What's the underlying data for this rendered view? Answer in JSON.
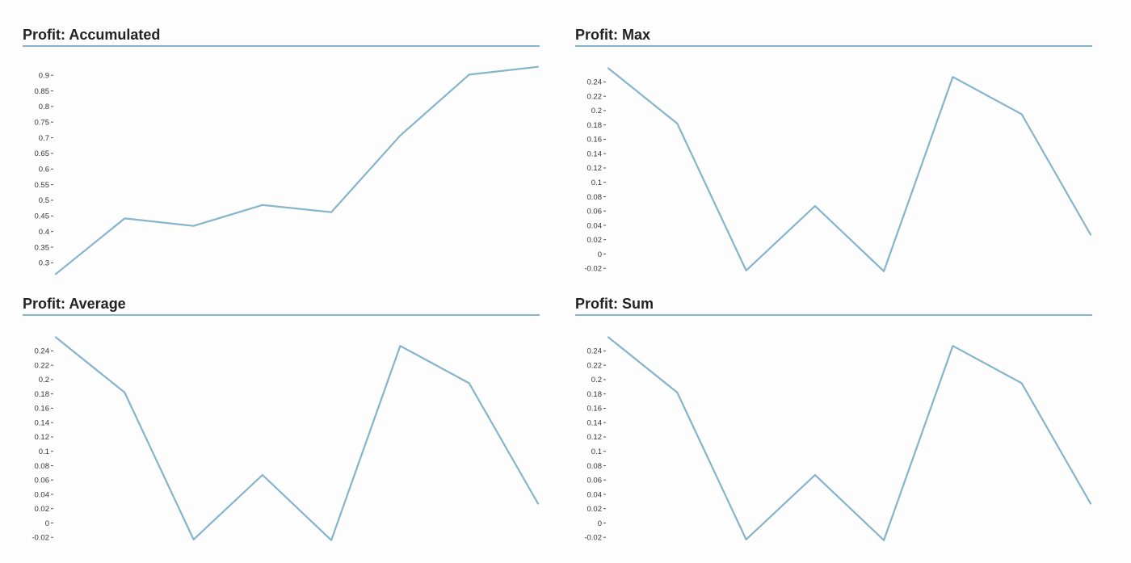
{
  "colors": {
    "line": "#86b4ca",
    "axis_rule": "#86b4ca",
    "text": "#222222"
  },
  "chart_data": [
    {
      "type": "line",
      "title": "Profit: Accumulated",
      "xlabel": "",
      "ylabel": "",
      "grid": false,
      "legend": "none",
      "x": [
        0,
        1,
        2,
        3,
        4,
        5,
        6,
        7
      ],
      "values": [
        0.264,
        0.442,
        0.418,
        0.485,
        0.462,
        0.707,
        0.902,
        0.927
      ],
      "ylim": [
        0.257,
        0.952
      ],
      "yticks": [
        0.3,
        0.35,
        0.4,
        0.45,
        0.5,
        0.55,
        0.6,
        0.65,
        0.7,
        0.75,
        0.8,
        0.85,
        0.9
      ],
      "ytick_labels": [
        "0.3",
        "0.35",
        "0.4",
        "0.45",
        "0.5",
        "0.55",
        "0.6",
        "0.65",
        "0.7",
        "0.75",
        "0.8",
        "0.85",
        "0.9"
      ]
    },
    {
      "type": "line",
      "title": "Profit: Max",
      "xlabel": "",
      "ylabel": "",
      "grid": false,
      "legend": "none",
      "x": [
        0,
        1,
        2,
        3,
        4,
        5,
        6,
        7
      ],
      "values": [
        0.259,
        0.182,
        -0.023,
        0.067,
        -0.024,
        0.247,
        0.195,
        0.027
      ],
      "ylim": [
        -0.031,
        0.272
      ],
      "yticks": [
        -0.02,
        0,
        0.02,
        0.04,
        0.06,
        0.08,
        0.1,
        0.12,
        0.14,
        0.16,
        0.18,
        0.2,
        0.22,
        0.24
      ],
      "ytick_labels": [
        "-0.02",
        "0",
        "0.02",
        "0.04",
        "0.06",
        "0.08",
        "0.1",
        "0.12",
        "0.14",
        "0.16",
        "0.18",
        "0.2",
        "0.22",
        "0.24"
      ]
    },
    {
      "type": "line",
      "title": "Profit: Average",
      "xlabel": "",
      "ylabel": "",
      "grid": false,
      "legend": "none",
      "x": [
        0,
        1,
        2,
        3,
        4,
        5,
        6,
        7
      ],
      "values": [
        0.259,
        0.182,
        -0.023,
        0.067,
        -0.024,
        0.247,
        0.195,
        0.027
      ],
      "ylim": [
        -0.031,
        0.272
      ],
      "yticks": [
        -0.02,
        0,
        0.02,
        0.04,
        0.06,
        0.08,
        0.1,
        0.12,
        0.14,
        0.16,
        0.18,
        0.2,
        0.22,
        0.24
      ],
      "ytick_labels": [
        "-0.02",
        "0",
        "0.02",
        "0.04",
        "0.06",
        "0.08",
        "0.1",
        "0.12",
        "0.14",
        "0.16",
        "0.18",
        "0.2",
        "0.22",
        "0.24"
      ]
    },
    {
      "type": "line",
      "title": "Profit: Sum",
      "xlabel": "",
      "ylabel": "",
      "grid": false,
      "legend": "none",
      "x": [
        0,
        1,
        2,
        3,
        4,
        5,
        6,
        7
      ],
      "values": [
        0.259,
        0.182,
        -0.023,
        0.067,
        -0.024,
        0.247,
        0.195,
        0.027
      ],
      "ylim": [
        -0.031,
        0.272
      ],
      "yticks": [
        -0.02,
        0,
        0.02,
        0.04,
        0.06,
        0.08,
        0.1,
        0.12,
        0.14,
        0.16,
        0.18,
        0.2,
        0.22,
        0.24
      ],
      "ytick_labels": [
        "-0.02",
        "0",
        "0.02",
        "0.04",
        "0.06",
        "0.08",
        "0.1",
        "0.12",
        "0.14",
        "0.16",
        "0.18",
        "0.2",
        "0.22",
        "0.24"
      ]
    }
  ]
}
